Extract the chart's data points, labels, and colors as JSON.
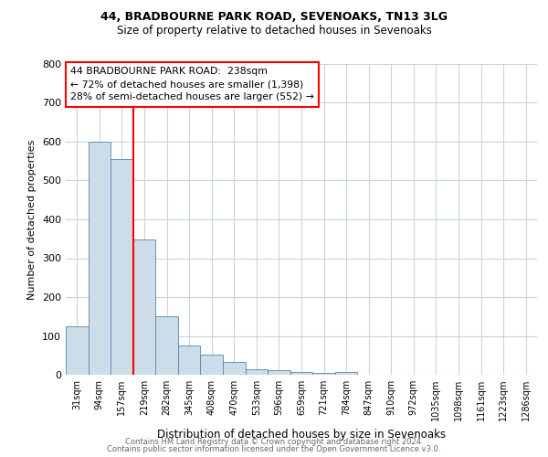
{
  "title1": "44, BRADBOURNE PARK ROAD, SEVENOAKS, TN13 3LG",
  "title2": "Size of property relative to detached houses in Sevenoaks",
  "xlabel": "Distribution of detached houses by size in Sevenoaks",
  "ylabel": "Number of detached properties",
  "categories": [
    "31sqm",
    "94sqm",
    "157sqm",
    "219sqm",
    "282sqm",
    "345sqm",
    "408sqm",
    "470sqm",
    "533sqm",
    "596sqm",
    "659sqm",
    "721sqm",
    "784sqm",
    "847sqm",
    "910sqm",
    "972sqm",
    "1035sqm",
    "1098sqm",
    "1161sqm",
    "1223sqm",
    "1286sqm"
  ],
  "values": [
    125,
    600,
    555,
    348,
    150,
    75,
    52,
    33,
    15,
    12,
    8,
    5,
    7,
    0,
    0,
    0,
    0,
    0,
    0,
    0,
    0
  ],
  "bar_color": "#ccdce8",
  "bar_edge_color": "#5588aa",
  "red_line_x": 2.5,
  "annotation_line1": "44 BRADBOURNE PARK ROAD:  238sqm",
  "annotation_line2": "← 72% of detached houses are smaller (1,398)",
  "annotation_line3": "28% of semi-detached houses are larger (552) →",
  "footer1": "Contains HM Land Registry data © Crown copyright and database right 2024.",
  "footer2": "Contains public sector information licensed under the Open Government Licence v3.0.",
  "ylim": [
    0,
    800
  ],
  "yticks": [
    0,
    100,
    200,
    300,
    400,
    500,
    600,
    700,
    800
  ],
  "background_color": "#ffffff",
  "grid_color": "#c8d4e0"
}
